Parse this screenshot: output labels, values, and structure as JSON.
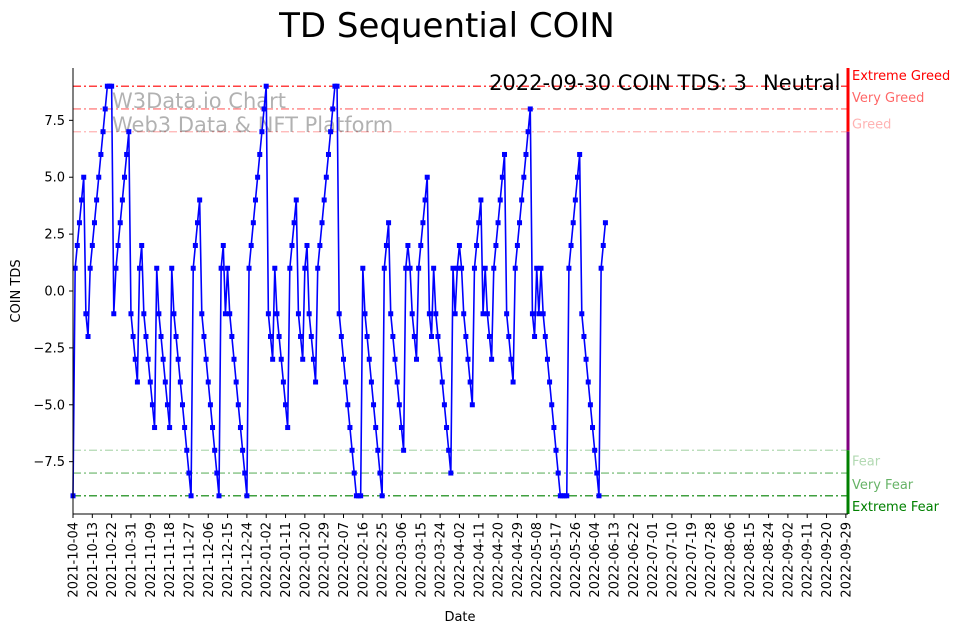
{
  "chart_data": {
    "type": "line",
    "title": "TD Sequential COIN",
    "xlabel": "Date",
    "ylabel": "COIN TDS",
    "ylim": [
      -9.8,
      9.8
    ],
    "xlim_dates": [
      "2021-10-04",
      "2022-09-30"
    ],
    "y_ticks": [
      -7.5,
      -5.0,
      -2.5,
      0.0,
      2.5,
      5.0,
      7.5
    ],
    "y_tick_labels": [
      "−7.5",
      "−5.0",
      "−2.5",
      "0.0",
      "2.5",
      "5.0",
      "7.5"
    ],
    "x_tick_labels": [
      "2021-10-04",
      "2021-10-13",
      "2021-10-22",
      "2021-10-31",
      "2021-11-09",
      "2021-11-18",
      "2021-11-27",
      "2021-12-06",
      "2021-12-15",
      "2021-12-24",
      "2022-01-02",
      "2022-01-11",
      "2022-01-20",
      "2022-01-29",
      "2022-02-07",
      "2022-02-16",
      "2022-02-25",
      "2022-03-06",
      "2022-03-15",
      "2022-03-24",
      "2022-04-02",
      "2022-04-11",
      "2022-04-20",
      "2022-04-29",
      "2022-05-08",
      "2022-05-17",
      "2022-05-26",
      "2022-06-04",
      "2022-06-13",
      "2022-06-22",
      "2022-07-01",
      "2022-07-10",
      "2022-07-19",
      "2022-07-28",
      "2022-08-06",
      "2022-08-15",
      "2022-08-24",
      "2022-09-02",
      "2022-09-11",
      "2022-09-20",
      "2022-09-29"
    ],
    "watermark": [
      "W3Data.io Chart",
      "Web3 Data & NFT Platform"
    ],
    "status": {
      "text": "2022-09-30 COIN TDS: 3",
      "label": "Neutral",
      "label_color": "#800080"
    },
    "zones": [
      {
        "label": "Extreme Greed",
        "value": 9,
        "color": "#ff0000",
        "opacity": 1.0
      },
      {
        "label": "Very Greed",
        "value": 8,
        "color": "#ff0000",
        "opacity": 0.6
      },
      {
        "label": "Greed",
        "value": 7,
        "color": "#ff0000",
        "opacity": 0.3
      },
      {
        "label": "Fear",
        "value": -7,
        "color": "#008000",
        "opacity": 0.3
      },
      {
        "label": "Very Fear",
        "value": -8,
        "color": "#008000",
        "opacity": 0.6
      },
      {
        "label": "Extreme Fear",
        "value": -9,
        "color": "#008000",
        "opacity": 1.0
      }
    ],
    "series": [
      {
        "color": "#0000ff",
        "start_date": "2021-10-04",
        "values": [
          -9,
          1,
          2,
          3,
          4,
          5,
          -1,
          -2,
          1,
          2,
          3,
          4,
          5,
          6,
          7,
          8,
          9,
          9,
          9,
          -1,
          1,
          2,
          3,
          4,
          5,
          6,
          7,
          -1,
          -2,
          -3,
          -4,
          1,
          2,
          -1,
          -2,
          -3,
          -4,
          -5,
          -6,
          1,
          -1,
          -2,
          -3,
          -4,
          -5,
          -6,
          1,
          -1,
          -2,
          -3,
          -4,
          -5,
          -6,
          -7,
          -8,
          -9,
          1,
          2,
          3,
          4,
          -1,
          -2,
          -3,
          -4,
          -5,
          -6,
          -7,
          -8,
          -9,
          1,
          2,
          -1,
          1,
          -1,
          -2,
          -3,
          -4,
          -5,
          -6,
          -7,
          -8,
          -9,
          1,
          2,
          3,
          4,
          5,
          6,
          7,
          8,
          9,
          -1,
          -2,
          -3,
          1,
          -1,
          -2,
          -3,
          -4,
          -5,
          -6,
          1,
          2,
          3,
          4,
          -1,
          -2,
          -3,
          1,
          2,
          -1,
          -2,
          -3,
          -4,
          1,
          2,
          3,
          4,
          5,
          6,
          7,
          8,
          9,
          9,
          -1,
          -2,
          -3,
          -4,
          -5,
          -6,
          -7,
          -8,
          -9,
          -9,
          -9,
          1,
          -1,
          -2,
          -3,
          -4,
          -5,
          -6,
          -7,
          -8,
          -9,
          1,
          2,
          3,
          -1,
          -2,
          -3,
          -4,
          -5,
          -6,
          -7,
          1,
          2,
          1,
          -1,
          -2,
          -3,
          1,
          2,
          3,
          4,
          5,
          -1,
          -2,
          1,
          -1,
          -2,
          -3,
          -4,
          -5,
          -6,
          -7,
          -8,
          1,
          -1,
          1,
          2,
          1,
          -1,
          -2,
          -3,
          -4,
          -5,
          1,
          2,
          3,
          4,
          -1,
          1,
          -1,
          -2,
          -3,
          1,
          2,
          3,
          4,
          5,
          6,
          -1,
          -2,
          -3,
          -4,
          1,
          2,
          3,
          4,
          5,
          6,
          7,
          8,
          -1,
          -2,
          1,
          -1,
          1,
          -1,
          -2,
          -3,
          -4,
          -5,
          -6,
          -7,
          -8,
          -9,
          -9,
          -9,
          -9,
          1,
          2,
          3,
          4,
          5,
          6,
          -1,
          -2,
          -3,
          -4,
          -5,
          -6,
          -7,
          -8,
          -9,
          1,
          2,
          3
        ]
      }
    ]
  }
}
